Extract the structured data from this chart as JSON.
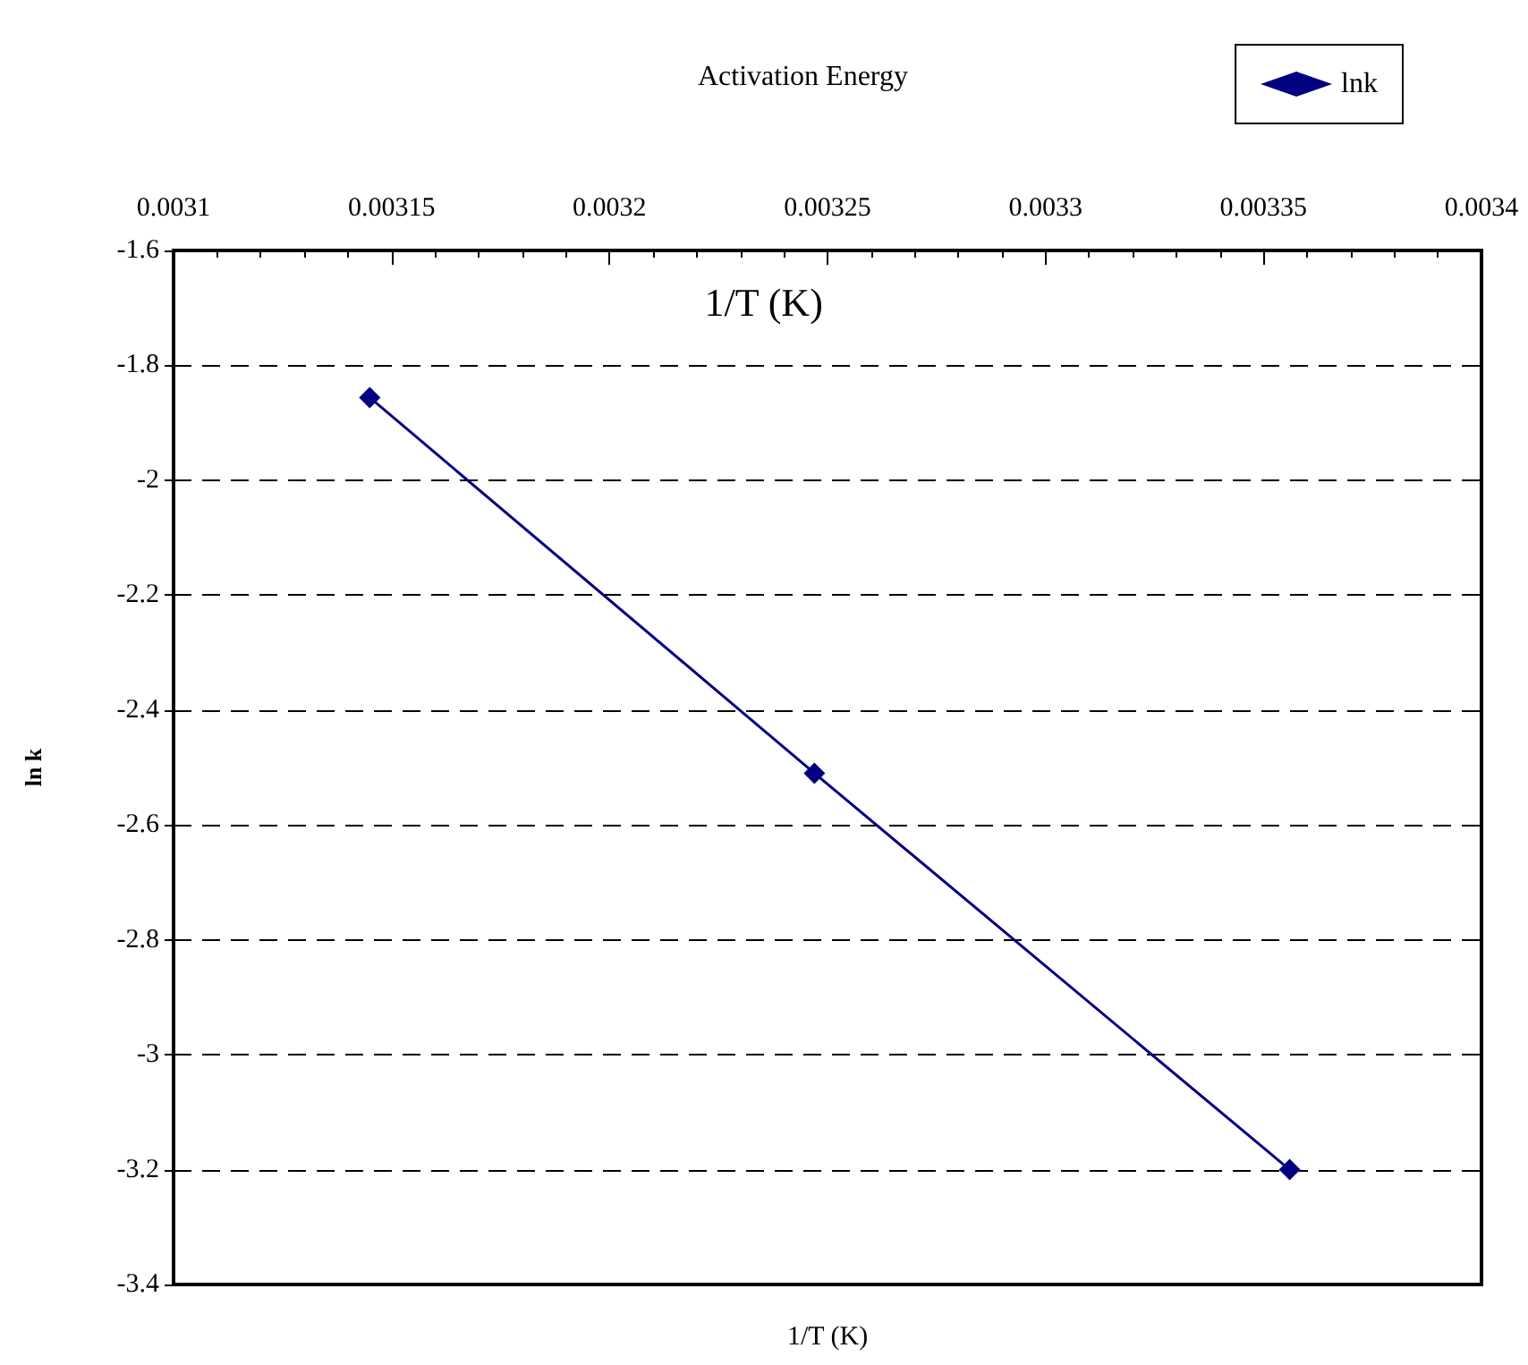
{
  "chart_data": {
    "type": "line",
    "title": "Activation Energy",
    "xlabel": "1/T (K)",
    "ylabel": "ln k",
    "annotations": [
      "1/T (K)"
    ],
    "x": [
      0.003145,
      0.003247,
      0.003356
    ],
    "series": [
      {
        "name": "lnk",
        "color": "#000080",
        "values": [
          -1.856,
          -2.51,
          -3.2
        ]
      }
    ],
    "xlim": [
      0.0031,
      0.0034
    ],
    "xticks": [
      0.0031,
      0.00315,
      0.0032,
      0.00325,
      0.0033,
      0.00335,
      0.0034
    ],
    "ylim": [
      -3.4,
      -1.6
    ],
    "yticks": [
      -3.4,
      -3.2,
      -3,
      -2.8,
      -2.6,
      -2.4,
      -2.2,
      -2,
      -1.8,
      -1.6
    ],
    "grid": "y",
    "legend": "top right",
    "marker": "diamond",
    "line_style": "solid"
  }
}
